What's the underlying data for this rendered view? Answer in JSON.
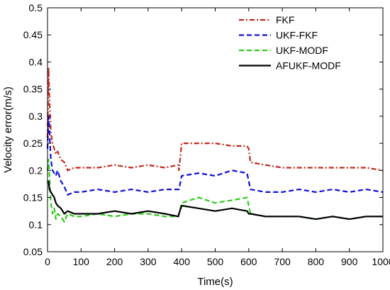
{
  "chart_data": {
    "type": "line",
    "title": "",
    "xlabel": "Time(s)",
    "ylabel": "Velocity error(m/s)",
    "xlim": [
      0,
      1000
    ],
    "ylim": [
      0.05,
      0.5
    ],
    "xticks": [
      "0",
      "100",
      "200",
      "300",
      "400",
      "500",
      "600",
      "700",
      "800",
      "900",
      "1000"
    ],
    "yticks": [
      "0.05",
      "0.1",
      "0.15",
      "0.2",
      "0.25",
      "0.3",
      "0.35",
      "0.4",
      "0.45",
      "0.5"
    ],
    "grid": false,
    "legend_position": "top-right",
    "series": [
      {
        "name": "FKF",
        "color": "#c0281e",
        "dash": "dashdot",
        "x": [
          0,
          3,
          6,
          10,
          15,
          20,
          25,
          30,
          40,
          50,
          60,
          80,
          100,
          150,
          200,
          250,
          300,
          350,
          390,
          392,
          400,
          450,
          500,
          550,
          595,
          600,
          605,
          650,
          700,
          750,
          800,
          850,
          900,
          950,
          1000
        ],
        "y": [
          0.26,
          0.39,
          0.33,
          0.27,
          0.25,
          0.24,
          0.23,
          0.235,
          0.22,
          0.215,
          0.2,
          0.205,
          0.205,
          0.205,
          0.21,
          0.205,
          0.21,
          0.205,
          0.21,
          0.2,
          0.25,
          0.25,
          0.25,
          0.245,
          0.245,
          0.24,
          0.215,
          0.21,
          0.205,
          0.205,
          0.205,
          0.205,
          0.205,
          0.205,
          0.2
        ]
      },
      {
        "name": "UKF-FKF",
        "color": "#1010d8",
        "dash": "dashed",
        "x": [
          0,
          3,
          6,
          10,
          15,
          20,
          25,
          30,
          40,
          50,
          60,
          80,
          100,
          150,
          200,
          250,
          300,
          350,
          390,
          392,
          400,
          450,
          500,
          550,
          595,
          600,
          605,
          650,
          700,
          750,
          800,
          850,
          900,
          950,
          1000
        ],
        "y": [
          0.24,
          0.3,
          0.27,
          0.22,
          0.2,
          0.195,
          0.19,
          0.2,
          0.18,
          0.17,
          0.155,
          0.16,
          0.16,
          0.165,
          0.16,
          0.165,
          0.16,
          0.165,
          0.165,
          0.165,
          0.19,
          0.195,
          0.19,
          0.2,
          0.195,
          0.18,
          0.165,
          0.16,
          0.16,
          0.165,
          0.16,
          0.165,
          0.16,
          0.165,
          0.16
        ]
      },
      {
        "name": "UKF-MODF",
        "color": "#2ecc1a",
        "dash": "dashed",
        "x": [
          0,
          3,
          6,
          10,
          15,
          20,
          25,
          30,
          40,
          50,
          60,
          80,
          100,
          150,
          200,
          250,
          300,
          350,
          390,
          392,
          400,
          450,
          500,
          550,
          595,
          600,
          605,
          650,
          700,
          750,
          800,
          850,
          900,
          950,
          1000
        ],
        "y": [
          0.2,
          0.22,
          0.19,
          0.14,
          0.12,
          0.13,
          0.11,
          0.12,
          0.115,
          0.105,
          0.12,
          0.115,
          0.115,
          0.12,
          0.115,
          0.12,
          0.12,
          0.115,
          0.115,
          0.12,
          0.14,
          0.15,
          0.14,
          0.145,
          0.15,
          0.135,
          0.12,
          0.115,
          0.115,
          0.115,
          0.11,
          0.115,
          0.11,
          0.115,
          0.115
        ]
      },
      {
        "name": "AFUKF-MODF",
        "color": "#000000",
        "dash": "solid",
        "x": [
          0,
          3,
          6,
          10,
          15,
          20,
          25,
          30,
          40,
          50,
          60,
          80,
          100,
          150,
          200,
          250,
          300,
          350,
          390,
          392,
          400,
          450,
          500,
          550,
          595,
          600,
          605,
          650,
          700,
          750,
          800,
          850,
          900,
          950,
          1000
        ],
        "y": [
          0.18,
          0.18,
          0.165,
          0.16,
          0.155,
          0.15,
          0.14,
          0.135,
          0.13,
          0.12,
          0.125,
          0.12,
          0.12,
          0.12,
          0.125,
          0.12,
          0.125,
          0.12,
          0.115,
          0.12,
          0.135,
          0.13,
          0.125,
          0.13,
          0.125,
          0.12,
          0.12,
          0.115,
          0.115,
          0.115,
          0.11,
          0.115,
          0.11,
          0.115,
          0.115
        ]
      }
    ]
  }
}
